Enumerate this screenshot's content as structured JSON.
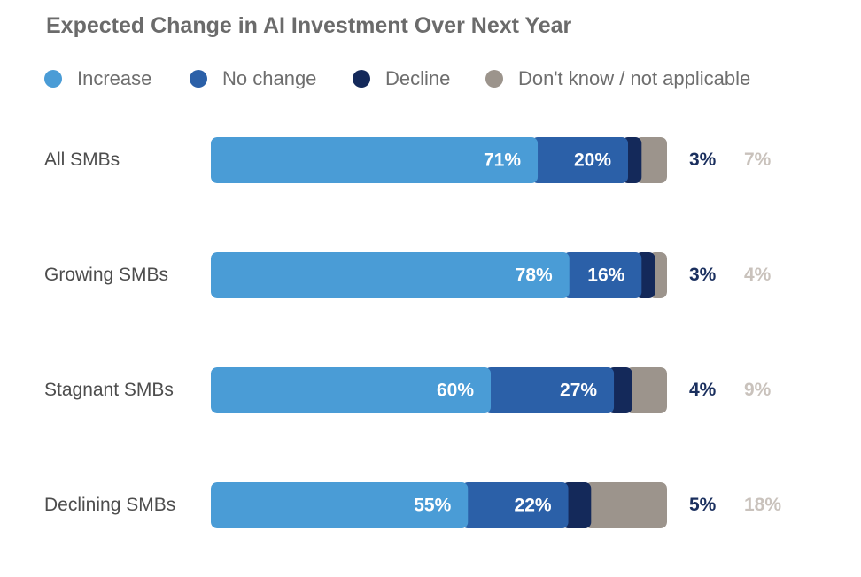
{
  "chart_data": {
    "type": "bar",
    "orientation": "horizontal",
    "stacked": true,
    "title": "Expected Change in AI Investment Over Next Year",
    "categories": [
      "All SMBs",
      "Growing SMBs",
      "Stagnant SMBs",
      "Declining SMBs"
    ],
    "series": [
      {
        "name": "Increase",
        "color": "#4a9cd6",
        "values": [
          71,
          78,
          60,
          55
        ],
        "labels": [
          "71%",
          "78%",
          "60%",
          "55%"
        ]
      },
      {
        "name": "No change",
        "color": "#2b60a8",
        "values": [
          20,
          16,
          27,
          22
        ],
        "labels": [
          "20%",
          "16%",
          "27%",
          "22%"
        ]
      },
      {
        "name": "Decline",
        "color": "#14295a",
        "values": [
          3,
          3,
          4,
          5
        ],
        "labels": [
          "3%",
          "3%",
          "4%",
          "5%"
        ]
      },
      {
        "name": "Don't know / not applicable",
        "color": "#9c948c",
        "values": [
          7,
          4,
          9,
          18
        ],
        "labels": [
          "7%",
          "4%",
          "9%",
          "18%"
        ]
      }
    ],
    "legend_position": "top-left",
    "grid": false
  }
}
